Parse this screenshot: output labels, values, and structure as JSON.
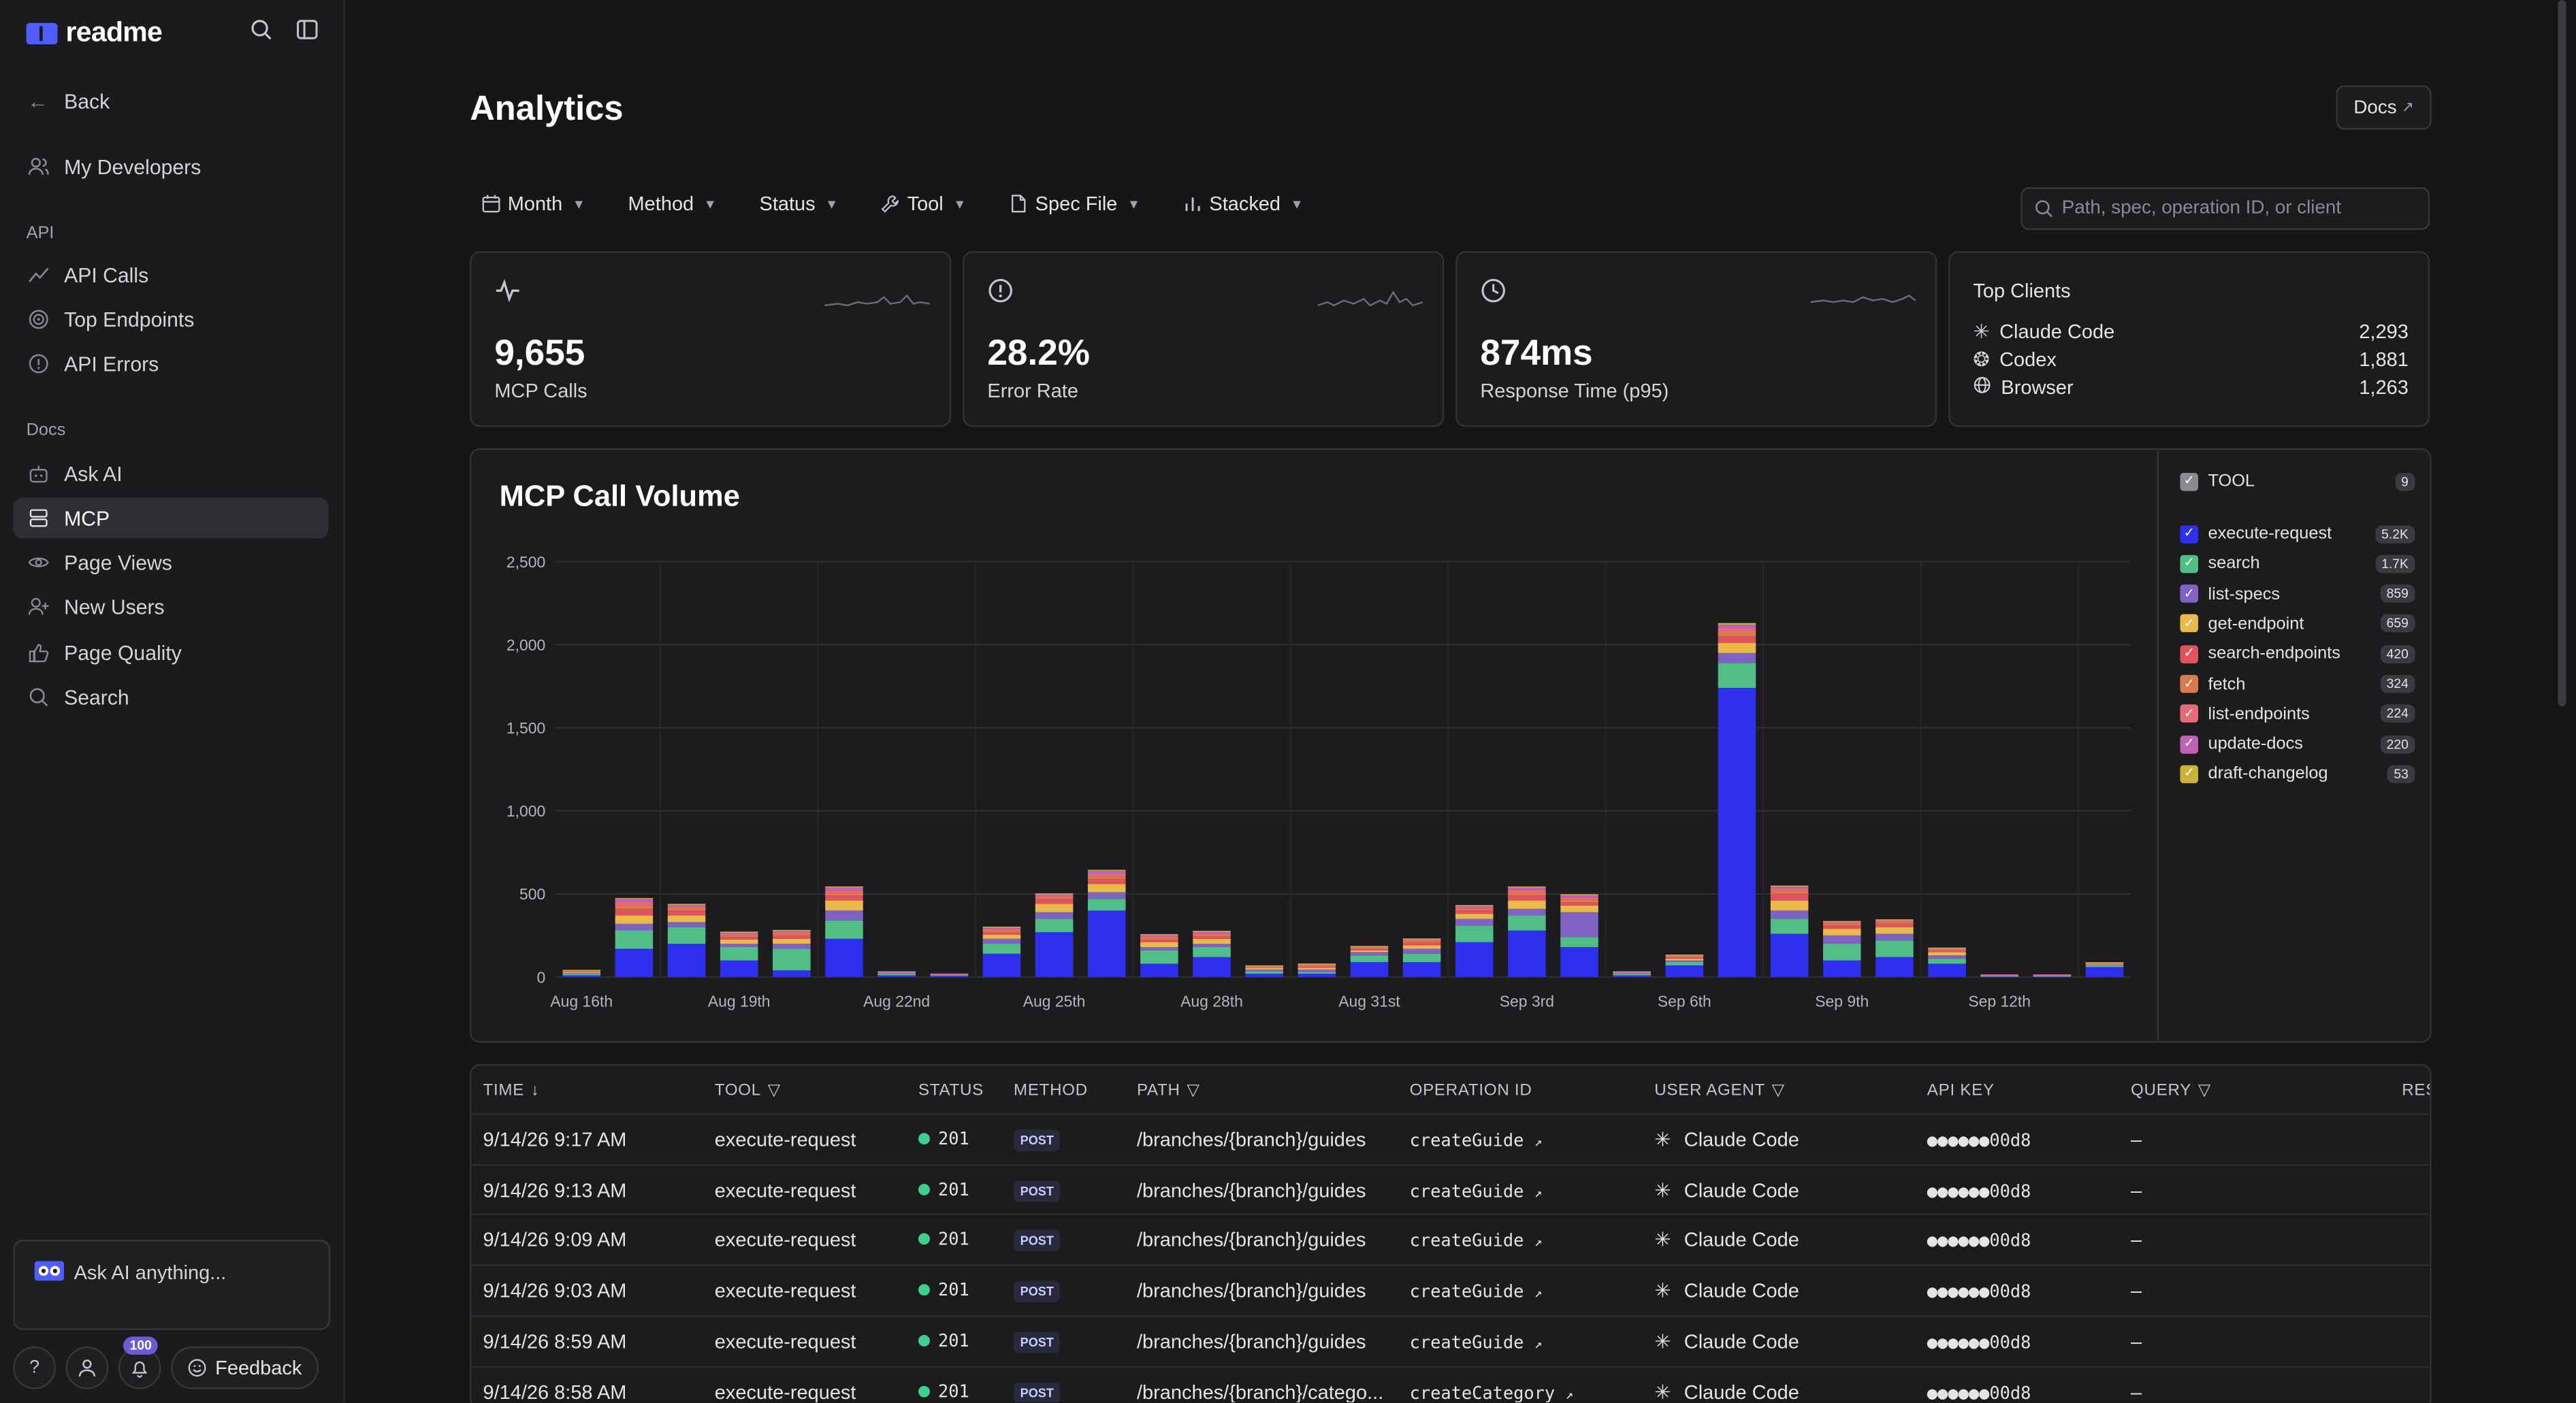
{
  "brand": "readme",
  "sidebar": {
    "back": "Back",
    "my_developers": "My Developers",
    "sections": [
      {
        "title": "API",
        "items": [
          "API Calls",
          "Top Endpoints",
          "API Errors"
        ]
      },
      {
        "title": "Docs",
        "items": [
          "Ask AI",
          "MCP",
          "Page Views",
          "New Users",
          "Page Quality",
          "Search"
        ]
      }
    ],
    "active": "MCP",
    "ask_placeholder": "Ask AI anything...",
    "help": "?",
    "notif_count": "100",
    "feedback": "Feedback"
  },
  "header": {
    "title": "Analytics",
    "docs_label": "Docs",
    "filters": [
      "Month",
      "Method",
      "Status",
      "Tool",
      "Spec File",
      "Stacked"
    ],
    "search_placeholder": "Path, spec, operation ID, or client"
  },
  "metrics": [
    {
      "value": "9,655",
      "label": "MCP Calls",
      "icon": "activity-icon"
    },
    {
      "value": "28.2%",
      "label": "Error Rate",
      "icon": "alert-circle-icon"
    },
    {
      "value": "874ms",
      "label": "Response Time (p95)",
      "icon": "clock-icon"
    }
  ],
  "top_clients": {
    "title": "Top Clients",
    "rows": [
      {
        "name": "Claude Code",
        "count": "2,293",
        "icon": "claude-icon"
      },
      {
        "name": "Codex",
        "count": "1,881",
        "icon": "openai-icon"
      },
      {
        "name": "Browser",
        "count": "1,263",
        "icon": "globe-icon"
      }
    ]
  },
  "legend": {
    "header": "TOOL",
    "header_count": "9",
    "items": [
      {
        "name": "execute-request",
        "count": "5.2K",
        "color": "#2f2ff0"
      },
      {
        "name": "search",
        "count": "1.7K",
        "color": "#4fbf86"
      },
      {
        "name": "list-specs",
        "count": "859",
        "color": "#7f63c4"
      },
      {
        "name": "get-endpoint",
        "count": "659",
        "color": "#e9b949"
      },
      {
        "name": "search-endpoints",
        "count": "420",
        "color": "#e0525c"
      },
      {
        "name": "fetch",
        "count": "324",
        "color": "#d97a4a"
      },
      {
        "name": "list-endpoints",
        "count": "224",
        "color": "#e86a78"
      },
      {
        "name": "update-docs",
        "count": "220",
        "color": "#c061b8"
      },
      {
        "name": "draft-changelog",
        "count": "53",
        "color": "#c9b23a"
      }
    ]
  },
  "chart_data": {
    "type": "bar",
    "stacked": true,
    "title": "MCP Call Volume",
    "ylim": [
      0,
      2500
    ],
    "yticks": [
      "0",
      "500",
      "1,000",
      "1,500",
      "2,000",
      "2,500"
    ],
    "xtick_labels": [
      "Aug 16th",
      "Aug 19th",
      "Aug 22nd",
      "Aug 25th",
      "Aug 28th",
      "Aug 31st",
      "Sep 3rd",
      "Sep 6th",
      "Sep 9th",
      "Sep 12th"
    ],
    "categories": [
      "Aug 16",
      "Aug 17",
      "Aug 18",
      "Aug 19",
      "Aug 20",
      "Aug 21",
      "Aug 22",
      "Aug 23",
      "Aug 24",
      "Aug 25",
      "Aug 26",
      "Aug 27",
      "Aug 28",
      "Aug 29",
      "Aug 30",
      "Aug 31",
      "Sep 1",
      "Sep 2",
      "Sep 3",
      "Sep 4",
      "Sep 5",
      "Sep 6",
      "Sep 7",
      "Sep 8",
      "Sep 9",
      "Sep 10",
      "Sep 11",
      "Sep 12",
      "Sep 13",
      "Sep 14"
    ],
    "series": [
      {
        "name": "execute-request",
        "values": [
          10,
          170,
          200,
          100,
          40,
          230,
          10,
          8,
          140,
          270,
          400,
          80,
          120,
          20,
          20,
          90,
          90,
          210,
          280,
          180,
          10,
          70,
          1740,
          260,
          100,
          120,
          80,
          5,
          5,
          60
        ]
      },
      {
        "name": "search",
        "values": [
          10,
          110,
          100,
          80,
          130,
          110,
          10,
          5,
          60,
          80,
          70,
          80,
          60,
          15,
          10,
          40,
          50,
          100,
          90,
          60,
          10,
          20,
          150,
          90,
          100,
          100,
          30,
          3,
          3,
          10
        ]
      },
      {
        "name": "list-specs",
        "values": [
          5,
          40,
          30,
          20,
          30,
          60,
          5,
          2,
          30,
          40,
          40,
          20,
          20,
          10,
          15,
          20,
          30,
          40,
          40,
          150,
          5,
          10,
          60,
          50,
          50,
          40,
          20,
          2,
          2,
          5
        ]
      },
      {
        "name": "get-endpoint",
        "values": [
          5,
          50,
          40,
          25,
          30,
          60,
          5,
          2,
          25,
          50,
          50,
          30,
          30,
          10,
          10,
          10,
          20,
          30,
          50,
          40,
          5,
          10,
          60,
          60,
          40,
          40,
          20,
          2,
          2,
          5
        ]
      },
      {
        "name": "search-endpoints",
        "values": [
          5,
          40,
          30,
          15,
          20,
          30,
          2,
          1,
          15,
          30,
          30,
          15,
          15,
          5,
          10,
          10,
          15,
          20,
          30,
          20,
          2,
          10,
          40,
          40,
          20,
          20,
          10,
          1,
          1,
          3
        ]
      },
      {
        "name": "fetch",
        "values": [
          3,
          20,
          15,
          10,
          10,
          15,
          1,
          1,
          10,
          10,
          15,
          10,
          10,
          3,
          5,
          5,
          10,
          10,
          15,
          15,
          1,
          5,
          30,
          20,
          10,
          10,
          5,
          1,
          1,
          2
        ]
      },
      {
        "name": "list-endpoints",
        "values": [
          2,
          20,
          10,
          10,
          10,
          15,
          1,
          1,
          10,
          10,
          15,
          10,
          10,
          3,
          5,
          5,
          10,
          10,
          20,
          15,
          1,
          5,
          20,
          15,
          10,
          10,
          5,
          1,
          1,
          2
        ]
      },
      {
        "name": "update-docs",
        "values": [
          2,
          20,
          10,
          10,
          10,
          20,
          1,
          1,
          10,
          10,
          20,
          10,
          10,
          3,
          5,
          5,
          5,
          10,
          15,
          15,
          1,
          3,
          20,
          10,
          5,
          5,
          5,
          1,
          1,
          1
        ]
      },
      {
        "name": "draft-changelog",
        "values": [
          1,
          5,
          5,
          3,
          3,
          5,
          0,
          0,
          3,
          3,
          5,
          3,
          3,
          1,
          1,
          2,
          2,
          3,
          5,
          3,
          0,
          2,
          10,
          5,
          2,
          2,
          2,
          0,
          0,
          1
        ]
      }
    ]
  },
  "table": {
    "headers": [
      "TIME",
      "TOOL",
      "STATUS",
      "METHOD",
      "PATH",
      "OPERATION ID",
      "USER AGENT",
      "API KEY",
      "QUERY",
      "RES"
    ],
    "rows": [
      {
        "time": "9/14/26 9:17 AM",
        "tool": "execute-request",
        "status": "201",
        "method": "POST",
        "path": "/branches/{branch}/guides",
        "op": "createGuide",
        "agent": "Claude Code",
        "key": "●●●●●●00d8",
        "query": "–"
      },
      {
        "time": "9/14/26 9:13 AM",
        "tool": "execute-request",
        "status": "201",
        "method": "POST",
        "path": "/branches/{branch}/guides",
        "op": "createGuide",
        "agent": "Claude Code",
        "key": "●●●●●●00d8",
        "query": "–"
      },
      {
        "time": "9/14/26 9:09 AM",
        "tool": "execute-request",
        "status": "201",
        "method": "POST",
        "path": "/branches/{branch}/guides",
        "op": "createGuide",
        "agent": "Claude Code",
        "key": "●●●●●●00d8",
        "query": "–"
      },
      {
        "time": "9/14/26 9:03 AM",
        "tool": "execute-request",
        "status": "201",
        "method": "POST",
        "path": "/branches/{branch}/guides",
        "op": "createGuide",
        "agent": "Claude Code",
        "key": "●●●●●●00d8",
        "query": "–"
      },
      {
        "time": "9/14/26 8:59 AM",
        "tool": "execute-request",
        "status": "201",
        "method": "POST",
        "path": "/branches/{branch}/guides",
        "op": "createGuide",
        "agent": "Claude Code",
        "key": "●●●●●●00d8",
        "query": "–"
      },
      {
        "time": "9/14/26 8:58 AM",
        "tool": "execute-request",
        "status": "201",
        "method": "POST",
        "path": "/branches/{branch}/catego...",
        "op": "createCategory",
        "agent": "Claude Code",
        "key": "●●●●●●00d8",
        "query": "–"
      }
    ]
  }
}
